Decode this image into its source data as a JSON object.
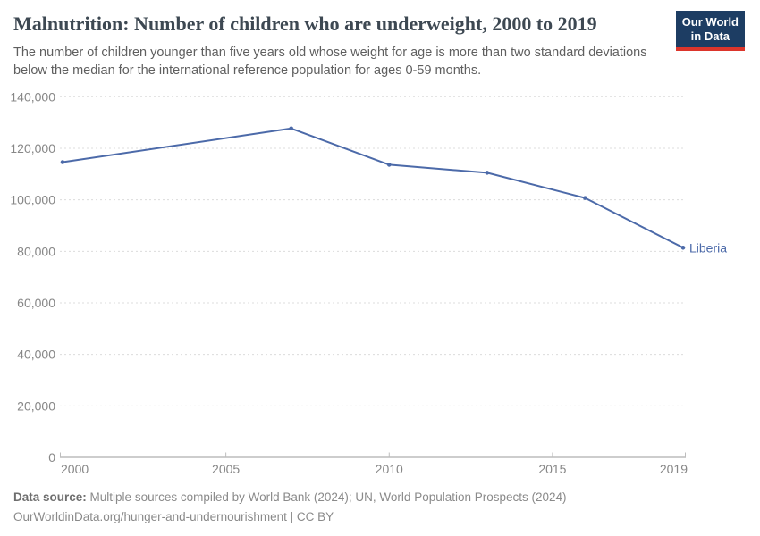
{
  "header": {
    "title": "Malnutrition: Number of children who are underweight, 2000 to 2019",
    "subtitle_lines": [
      "The number of children younger than five years old whose weight for age is more than two standard deviations",
      "below the median for the international reference population for ages 0-59 months."
    ],
    "logo_line1": "Our World",
    "logo_line2": "in Data",
    "logo_bg_color": "#1d3d63",
    "logo_accent_color": "#dc352b"
  },
  "chart_data": {
    "type": "line",
    "title": "Malnutrition: Number of children who are underweight, 2000 to 2019",
    "xlabel": "",
    "ylabel": "",
    "x": [
      2000,
      2007,
      2010,
      2013,
      2016,
      2019
    ],
    "series": [
      {
        "name": "Liberia",
        "values": [
          114600,
          127700,
          113600,
          110500,
          100700,
          81400
        ],
        "color": "#4c6aa9"
      }
    ],
    "entity_label": "Liberia",
    "xlim": [
      2000,
      2019
    ],
    "ylim": [
      0,
      140000
    ],
    "xticks": [
      2000,
      2005,
      2010,
      2015,
      2019
    ],
    "xtick_labels": [
      "2000",
      "2005",
      "2010",
      "2015",
      "2019"
    ],
    "yticks": [
      0,
      20000,
      40000,
      60000,
      80000,
      100000,
      120000,
      140000
    ],
    "ytick_labels": [
      "0",
      "20,000",
      "40,000",
      "60,000",
      "80,000",
      "100,000",
      "120,000",
      "140,000"
    ],
    "grid": "horizontal-dashed",
    "legend_position": "line-end-label",
    "gridline_color": "#dcdcdc",
    "axis_line_color": "#9b9b9b",
    "tick_label_color": "#878787"
  },
  "footer": {
    "datasource_label": "Data source:",
    "datasource_text": "Multiple sources compiled by World Bank (2024); UN, World Population Prospects (2024)",
    "url_text": "OurWorldinData.org/hunger-and-undernourishment",
    "license_text": " | CC BY"
  }
}
